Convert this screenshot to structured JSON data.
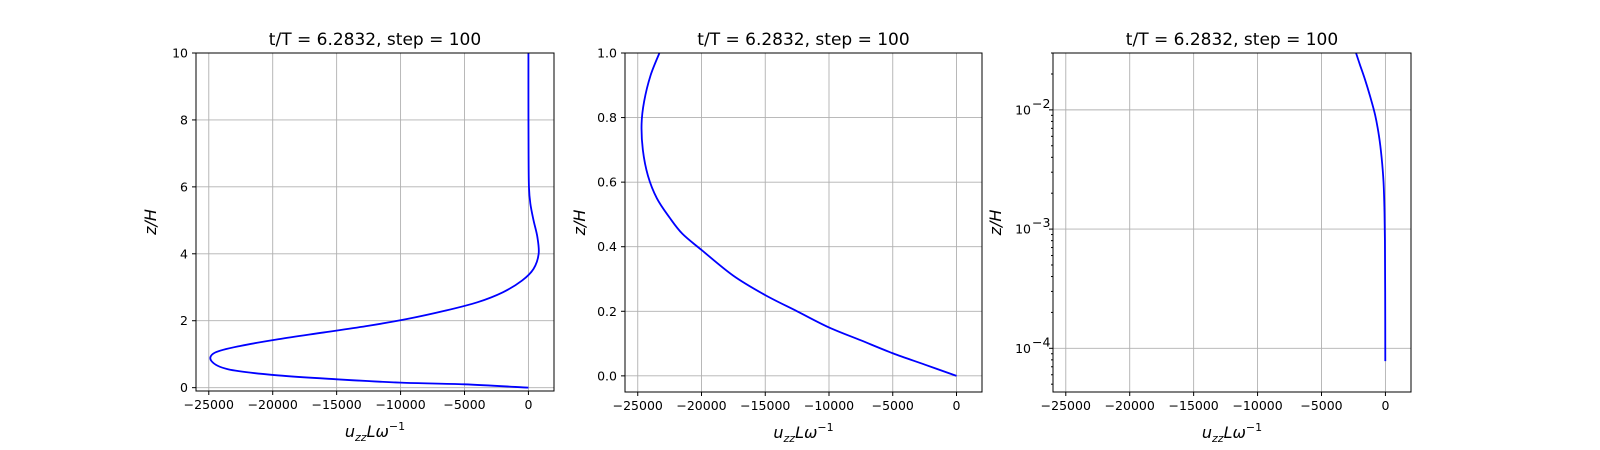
{
  "chart_data": [
    {
      "type": "line",
      "title": "t/T = 6.2832, step = 100",
      "xlabel": "u_{zz}Lω^{-1}",
      "ylabel": "z/H",
      "xlim": [
        -26000,
        2000
      ],
      "ylim": [
        -0.1,
        10
      ],
      "yscale": "linear",
      "xticks": [
        -25000,
        -20000,
        -15000,
        -10000,
        -5000,
        0
      ],
      "yticks": [
        0,
        2,
        4,
        6,
        8,
        10
      ],
      "xticklabels": [
        "−25000",
        "−20000",
        "−15000",
        "−10000",
        "−5000",
        "0"
      ],
      "yticklabels": [
        "0",
        "2",
        "4",
        "6",
        "8",
        "10"
      ],
      "series": [
        {
          "name": "u_zz",
          "color": "#0000ff",
          "x": [
            0,
            -5000,
            -10000,
            -15000,
            -20000,
            -23500,
            -24800,
            -24500,
            -22500,
            -19500,
            -16000,
            -12500,
            -9500,
            -6500,
            -4000,
            -2000,
            -500,
            400,
            800,
            700,
            400,
            150,
            40,
            10,
            0,
            0
          ],
          "y": [
            0.0,
            0.1,
            0.15,
            0.25,
            0.38,
            0.55,
            0.8,
            1.05,
            1.25,
            1.45,
            1.65,
            1.85,
            2.05,
            2.3,
            2.55,
            2.85,
            3.2,
            3.55,
            4.0,
            4.5,
            5.0,
            5.5,
            6.0,
            7.0,
            8.5,
            10.0
          ]
        }
      ]
    },
    {
      "type": "line",
      "title": "t/T = 6.2832, step = 100",
      "xlabel": "u_{zz}Lω^{-1}",
      "ylabel": "z/H",
      "xlim": [
        -26000,
        2000
      ],
      "ylim": [
        -0.05,
        1.0
      ],
      "yscale": "linear",
      "xticks": [
        -25000,
        -20000,
        -15000,
        -10000,
        -5000,
        0
      ],
      "yticks": [
        0.0,
        0.2,
        0.4,
        0.6,
        0.8,
        1.0
      ],
      "xticklabels": [
        "−25000",
        "−20000",
        "−15000",
        "−10000",
        "−5000",
        "0"
      ],
      "yticklabels": [
        "0.0",
        "0.2",
        "0.4",
        "0.6",
        "0.8",
        "1.0"
      ],
      "series": [
        {
          "name": "u_zz",
          "color": "#0000ff",
          "x": [
            0,
            -2500,
            -5000,
            -7500,
            -10000,
            -12500,
            -15000,
            -17500,
            -20000,
            -21500,
            -22500,
            -23500,
            -24200,
            -24600,
            -24700,
            -24500,
            -24000,
            -23300
          ],
          "y": [
            0.0,
            0.035,
            0.07,
            0.11,
            0.15,
            0.2,
            0.25,
            0.31,
            0.39,
            0.44,
            0.49,
            0.55,
            0.62,
            0.7,
            0.78,
            0.85,
            0.93,
            1.0
          ]
        }
      ]
    },
    {
      "type": "line",
      "title": "t/T = 6.2832, step = 100",
      "xlabel": "u_{zz}Lω^{-1}",
      "ylabel": "z/H",
      "xlim": [
        -26000,
        2000
      ],
      "ylim": [
        4.3e-05,
        0.03
      ],
      "yscale": "log",
      "xticks": [
        -25000,
        -20000,
        -15000,
        -10000,
        -5000,
        0
      ],
      "yticks": [
        0.0001,
        0.001,
        0.01
      ],
      "xticklabels": [
        "−25000",
        "−20000",
        "−15000",
        "−10000",
        "−5000",
        "0"
      ],
      "yticklabels": [
        "10",
        "10",
        "10"
      ],
      "yticklabel_exponents": [
        "−4",
        "−3",
        "−2"
      ],
      "series": [
        {
          "name": "u_zz",
          "color": "#0000ff",
          "x": [
            -10,
            -20,
            -40,
            -80,
            -150,
            -300,
            -500,
            -800,
            -1200,
            -1600,
            -2000,
            -2300
          ],
          "y": [
            7.8e-05,
            0.0003,
            0.0008,
            0.0015,
            0.0025,
            0.004,
            0.006,
            0.009,
            0.013,
            0.018,
            0.024,
            0.03
          ]
        }
      ]
    }
  ]
}
